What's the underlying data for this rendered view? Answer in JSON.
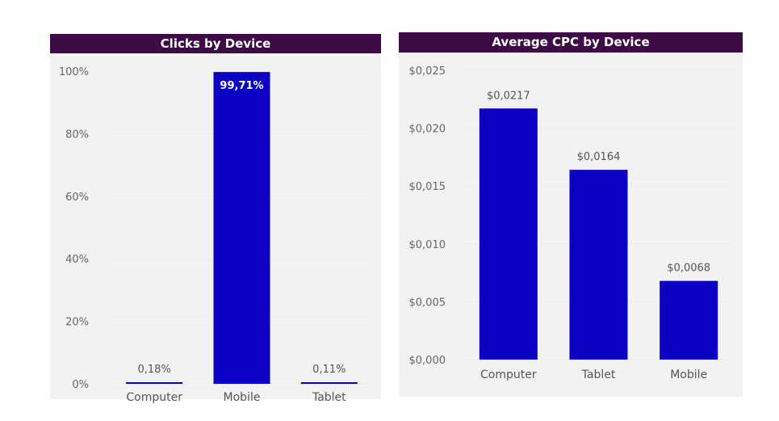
{
  "chart_data": [
    {
      "type": "bar",
      "title": "Clicks by Device",
      "categories": [
        "Computer",
        "Mobile",
        "Tablet"
      ],
      "values": [
        0.18,
        99.71,
        0.11
      ],
      "value_labels": [
        "0,18%",
        "99,71%",
        "0,11%"
      ],
      "ylim": [
        0,
        100
      ],
      "yticks": [
        0,
        20,
        40,
        60,
        80,
        100
      ],
      "ytick_labels": [
        "0%",
        "20%",
        "40%",
        "60%",
        "80%",
        "100%"
      ],
      "xlabel": "",
      "ylabel": "",
      "grid": true,
      "bar_color": "#0c00c2",
      "header_color": "#3d0b45"
    },
    {
      "type": "bar",
      "title": "Average CPC by Device",
      "categories": [
        "Computer",
        "Tablet",
        "Mobile"
      ],
      "values": [
        0.0217,
        0.0164,
        0.0068
      ],
      "value_labels": [
        "$0,0217",
        "$0,0164",
        "$0,0068"
      ],
      "ylim": [
        0,
        0.025
      ],
      "yticks": [
        0,
        0.005,
        0.01,
        0.015,
        0.02,
        0.025
      ],
      "ytick_labels": [
        "$0,000",
        "$0,005",
        "$0,010",
        "$0,015",
        "$0,020",
        "$0,025"
      ],
      "xlabel": "",
      "ylabel": "",
      "grid": true,
      "bar_color": "#0c00c2",
      "header_color": "#3d0b45"
    }
  ]
}
